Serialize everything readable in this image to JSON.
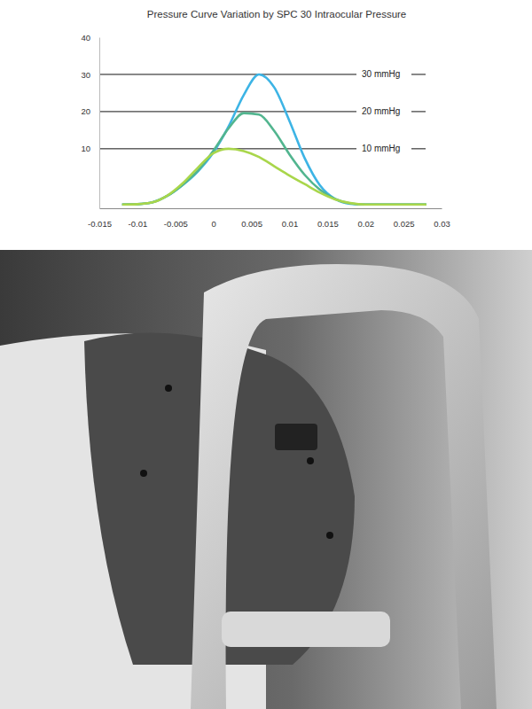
{
  "chart_data": {
    "type": "line",
    "title": "Pressure Curve Variation by SPC 30 Intraocular Pressure",
    "x": [
      -0.012,
      -0.01,
      -0.008,
      -0.006,
      -0.004,
      -0.002,
      0,
      0.002,
      0.004,
      0.006,
      0.008,
      0.01,
      0.012,
      0.014,
      0.016,
      0.018,
      0.02,
      0.024,
      0.028
    ],
    "series": [
      {
        "color": "#3db4e5",
        "values": [
          -5,
          -4.9,
          -4.4,
          -2.6,
          0.3,
          4,
          9,
          16,
          24.5,
          30,
          26.5,
          17.5,
          7.5,
          0.2,
          -3.5,
          -4.8,
          -5,
          -5,
          -5
        ]
      },
      {
        "color": "#52b58f",
        "values": [
          -5,
          -4.9,
          -4.4,
          -2.6,
          0.4,
          4.2,
          9.5,
          15.5,
          19.6,
          19.2,
          14.8,
          8.5,
          3,
          -1,
          -3.5,
          -4.7,
          -5,
          -5,
          -5
        ]
      },
      {
        "color": "#a9d64b",
        "values": [
          -5,
          -4.9,
          -4.4,
          -2.5,
          0.8,
          5,
          8.8,
          10,
          9.4,
          7.8,
          5.3,
          2.8,
          0.5,
          -1.8,
          -3.6,
          -4.6,
          -5,
          -5,
          -5
        ]
      }
    ],
    "annotations": [
      {
        "text": "30 mmHg",
        "y": 30
      },
      {
        "text": "20 mmHg",
        "y": 20
      },
      {
        "text": "10 mmHg",
        "y": 10
      }
    ],
    "xlim": [
      -0.015,
      0.03
    ],
    "xticks": [
      -0.015,
      -0.01,
      -0.005,
      0,
      0.005,
      0.01,
      0.015,
      0.02,
      0.025,
      0.03
    ],
    "ylim": [
      -6,
      40
    ],
    "yticks": [
      10,
      20,
      30,
      40
    ],
    "grid": false
  }
}
